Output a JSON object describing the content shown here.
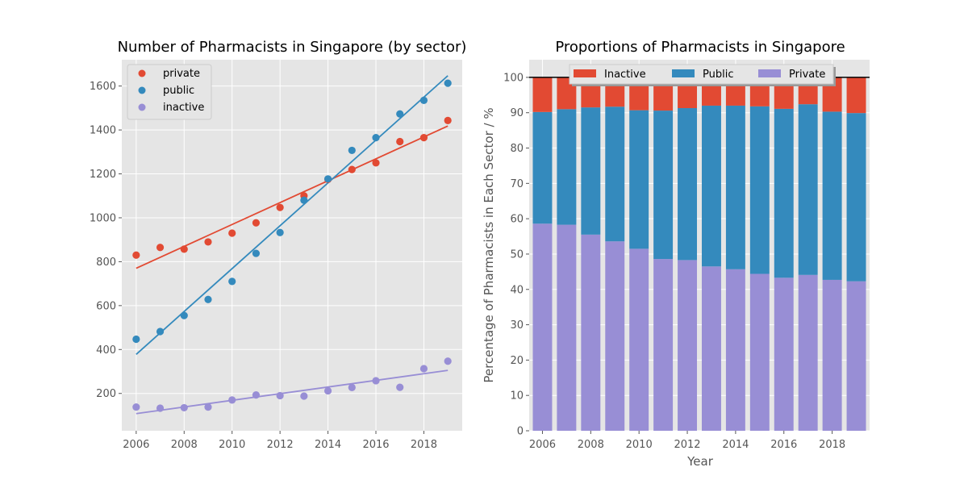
{
  "chart_data": [
    {
      "type": "scatter",
      "title": "Number of Pharmacists in Singapore (by sector)",
      "xlabel": "",
      "ylabel": "",
      "xlim": [
        2005.4,
        2019.6
      ],
      "ylim": [
        30,
        1720
      ],
      "xticks": [
        2006,
        2008,
        2010,
        2012,
        2014,
        2016,
        2018
      ],
      "yticks": [
        200,
        400,
        600,
        800,
        1000,
        1200,
        1400,
        1600
      ],
      "grid": true,
      "legend_position": "upper-left",
      "x": [
        2006,
        2007,
        2008,
        2009,
        2010,
        2011,
        2012,
        2013,
        2014,
        2015,
        2016,
        2017,
        2018,
        2019
      ],
      "series": [
        {
          "name": "private",
          "color": "#E24A33",
          "values": [
            830,
            865,
            857,
            890,
            930,
            977,
            1047,
            1100,
            1175,
            1220,
            1250,
            1347,
            1365,
            1443
          ],
          "trend_line": {
            "x": [
              2006,
              2019
            ],
            "y": [
              770,
              1418
            ]
          }
        },
        {
          "name": "public",
          "color": "#348ABD",
          "values": [
            447,
            482,
            555,
            628,
            710,
            838,
            933,
            1080,
            1177,
            1307,
            1365,
            1473,
            1535,
            1613
          ],
          "trend_line": {
            "x": [
              2006,
              2019
            ],
            "y": [
              378,
              1647
            ]
          }
        },
        {
          "name": "inactive",
          "color": "#988ED5",
          "values": [
            138,
            133,
            135,
            138,
            170,
            193,
            190,
            188,
            212,
            227,
            258,
            228,
            313,
            347
          ],
          "trend_line": {
            "x": [
              2006,
              2019
            ],
            "y": [
              108,
              305
            ]
          }
        }
      ]
    },
    {
      "type": "bar",
      "stacked": true,
      "title": "Proportions of Pharmacists in Singapore",
      "xlabel": "Year",
      "ylabel": "Percentage of Pharmacists in Each Sector / %",
      "xlim": [
        2005.45,
        2019.55
      ],
      "ylim": [
        0,
        105
      ],
      "xticks": [
        2006,
        2008,
        2010,
        2012,
        2014,
        2016,
        2018
      ],
      "yticks": [
        0,
        10,
        20,
        30,
        40,
        50,
        60,
        70,
        80,
        90,
        100
      ],
      "grid": true,
      "reference_line": 100,
      "legend_position": "top-center",
      "categories": [
        2006,
        2007,
        2008,
        2009,
        2010,
        2011,
        2012,
        2013,
        2014,
        2015,
        2016,
        2017,
        2018,
        2019
      ],
      "series": [
        {
          "name": "Private",
          "color": "#988ED5",
          "values": [
            58.6,
            58.3,
            55.5,
            53.6,
            51.5,
            48.6,
            48.3,
            46.5,
            45.7,
            44.4,
            43.3,
            44.1,
            42.7,
            42.3
          ]
        },
        {
          "name": "Public",
          "color": "#348ABD",
          "values": [
            31.6,
            32.7,
            36.0,
            38.1,
            39.2,
            42.0,
            43.0,
            45.5,
            46.3,
            47.4,
            47.8,
            48.3,
            47.6,
            47.6
          ]
        },
        {
          "name": "Inactive",
          "color": "#E24A33",
          "values": [
            9.8,
            9.0,
            8.5,
            8.3,
            9.3,
            9.4,
            8.7,
            8.0,
            8.0,
            8.2,
            8.9,
            7.6,
            9.7,
            10.1
          ]
        }
      ],
      "legend_order": [
        "Inactive",
        "Public",
        "Private"
      ]
    }
  ]
}
